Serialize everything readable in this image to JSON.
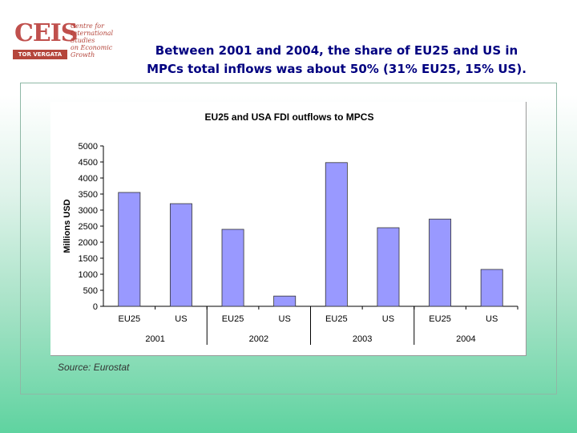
{
  "logo": {
    "wordmark": "CEIS",
    "bar_text": "TOR VERGATA",
    "text_lines": [
      "Centre for",
      "International",
      "Studies",
      "on Economic",
      "Growth"
    ]
  },
  "heading": {
    "line1": "Between 2001 and 2004, the share of EU25 and US in",
    "line2": "MPCs total inflows was about 50% (31% EU25, 15% US)."
  },
  "source": "Source: Eurostat",
  "colors": {
    "bar": "#9999ff",
    "heading": "#000080",
    "accent": "#b5463c"
  },
  "chart_data": {
    "type": "bar",
    "title": "EU25 and USA FDI outflows to MPCS",
    "ylabel": "Millions USD",
    "xlabel": "",
    "ylim": [
      0,
      5000
    ],
    "yticks": [
      0,
      500,
      1000,
      1500,
      2000,
      2500,
      3000,
      3500,
      4000,
      4500,
      5000
    ],
    "groups": [
      {
        "year": "2001",
        "bars": [
          {
            "category": "EU25",
            "value": 3550
          },
          {
            "category": "US",
            "value": 3200
          }
        ]
      },
      {
        "year": "2002",
        "bars": [
          {
            "category": "EU25",
            "value": 2400
          },
          {
            "category": "US",
            "value": 320
          }
        ]
      },
      {
        "year": "2003",
        "bars": [
          {
            "category": "EU25",
            "value": 4480
          },
          {
            "category": "US",
            "value": 2450
          }
        ]
      },
      {
        "year": "2004",
        "bars": [
          {
            "category": "EU25",
            "value": 2720
          },
          {
            "category": "US",
            "value": 1150
          }
        ]
      }
    ],
    "grid": false,
    "legend": "none"
  }
}
